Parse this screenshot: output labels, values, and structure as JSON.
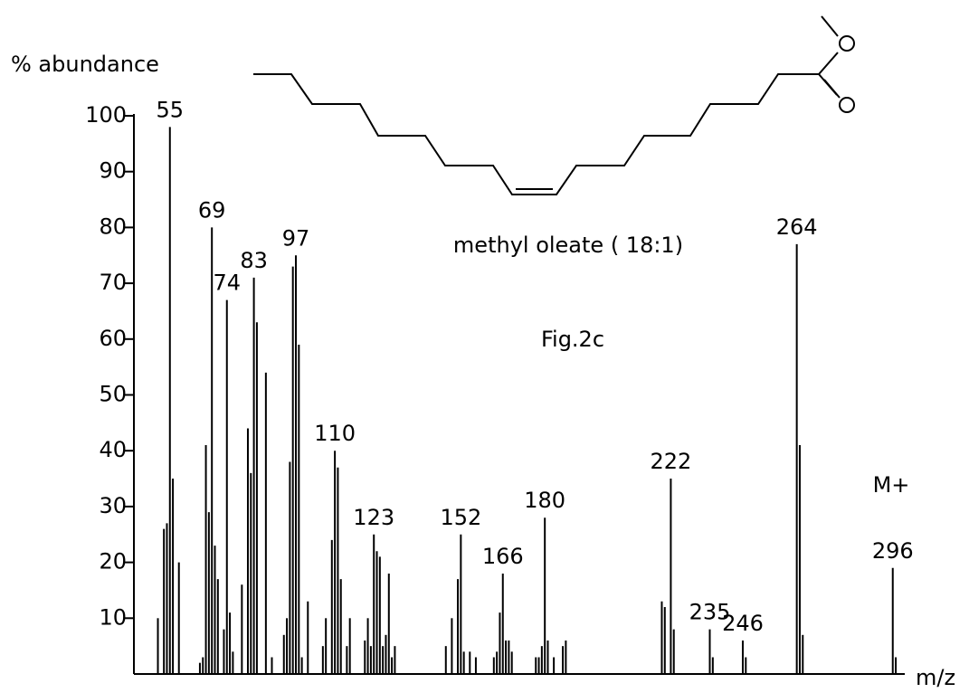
{
  "chart_data": {
    "type": "bar",
    "y_label": "% abundance",
    "x_label": "m/z",
    "title": "methyl oleate ( 18:1)",
    "subtitle": "Fig.2c",
    "annotation": "M+",
    "color": "#000000",
    "xlim": [
      43,
      300
    ],
    "ylim": [
      0,
      100
    ],
    "yticks": [
      10,
      20,
      30,
      40,
      50,
      60,
      70,
      80,
      90,
      100
    ],
    "x": [
      51,
      53,
      54,
      55,
      56,
      58,
      65,
      66,
      67,
      68,
      69,
      70,
      71,
      73,
      74,
      75,
      76,
      79,
      81,
      82,
      83,
      84,
      87,
      89,
      93,
      94,
      95,
      96,
      97,
      98,
      99,
      101,
      106,
      107,
      109,
      110,
      111,
      112,
      114,
      115,
      120,
      121,
      122,
      123,
      124,
      125,
      126,
      127,
      128,
      129,
      130,
      147,
      149,
      151,
      152,
      153,
      155,
      157,
      163,
      164,
      165,
      166,
      167,
      168,
      169,
      177,
      178,
      179,
      180,
      181,
      183,
      186,
      187,
      219,
      220,
      222,
      223,
      235,
      236,
      246,
      247,
      264,
      265,
      266,
      296,
      297
    ],
    "values": [
      10,
      26,
      27,
      98,
      35,
      20,
      2,
      3,
      41,
      29,
      80,
      23,
      17,
      8,
      67,
      11,
      4,
      16,
      44,
      36,
      71,
      63,
      54,
      3,
      7,
      10,
      38,
      73,
      75,
      59,
      3,
      13,
      5,
      10,
      24,
      40,
      37,
      17,
      5,
      10,
      6,
      10,
      5,
      25,
      22,
      21,
      5,
      7,
      18,
      3,
      5,
      5,
      10,
      17,
      25,
      4,
      4,
      3,
      3,
      4,
      11,
      18,
      6,
      6,
      4,
      3,
      3,
      5,
      28,
      6,
      3,
      5,
      6,
      13,
      12,
      35,
      8,
      8,
      3,
      6,
      3,
      77,
      41,
      7,
      19,
      3
    ],
    "x_labels": [
      null,
      null,
      null,
      "55",
      null,
      null,
      null,
      null,
      null,
      null,
      "69",
      null,
      null,
      null,
      "74",
      null,
      null,
      null,
      null,
      null,
      "83",
      null,
      null,
      null,
      null,
      null,
      null,
      null,
      "97",
      null,
      null,
      null,
      null,
      null,
      null,
      "110",
      null,
      null,
      null,
      null,
      null,
      null,
      null,
      "123",
      null,
      null,
      null,
      null,
      null,
      null,
      null,
      null,
      null,
      null,
      "152",
      null,
      null,
      null,
      null,
      null,
      null,
      "166",
      null,
      null,
      null,
      null,
      null,
      null,
      "180",
      null,
      null,
      null,
      null,
      null,
      null,
      "222",
      null,
      "235",
      null,
      "246",
      null,
      "264",
      null,
      null,
      "296",
      null
    ]
  }
}
